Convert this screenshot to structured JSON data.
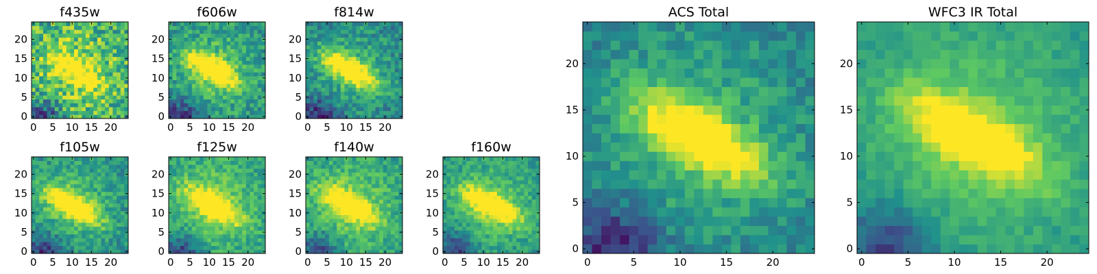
{
  "figure": {
    "background": "#ffffff",
    "colormap": "viridis",
    "colormap_stops": [
      "#440154",
      "#3b528b",
      "#21918c",
      "#5ec962",
      "#fde725"
    ]
  },
  "chart_data": [
    {
      "type": "heatmap",
      "title": "f435w",
      "grid_size": [
        25,
        25
      ],
      "xlim": [
        0,
        24
      ],
      "ylim": [
        0,
        24
      ],
      "xticks": [
        0,
        5,
        10,
        15,
        20
      ],
      "yticks": [
        0,
        5,
        10,
        15,
        20
      ],
      "peak": {
        "x": 11,
        "y": 12
      },
      "noise": 0.5,
      "bias": 0.58,
      "contrast": 0.4
    },
    {
      "type": "heatmap",
      "title": "f606w",
      "grid_size": [
        25,
        25
      ],
      "xlim": [
        0,
        24
      ],
      "ylim": [
        0,
        24
      ],
      "xticks": [
        0,
        5,
        10,
        15,
        20
      ],
      "yticks": [
        0,
        5,
        10,
        15,
        20
      ],
      "peak": {
        "x": 11,
        "y": 12
      },
      "noise": 0.32,
      "bias": 0.46,
      "contrast": 0.6
    },
    {
      "type": "heatmap",
      "title": "f814w",
      "grid_size": [
        25,
        25
      ],
      "xlim": [
        0,
        24
      ],
      "ylim": [
        0,
        24
      ],
      "xticks": [
        0,
        5,
        10,
        15,
        20
      ],
      "yticks": [
        0,
        5,
        10,
        15,
        20
      ],
      "peak": {
        "x": 11,
        "y": 12
      },
      "noise": 0.3,
      "bias": 0.4,
      "contrast": 0.65
    },
    {
      "type": "heatmap",
      "title": "f105w",
      "grid_size": [
        25,
        25
      ],
      "xlim": [
        0,
        24
      ],
      "ylim": [
        0,
        24
      ],
      "xticks": [
        0,
        5,
        10,
        15,
        20
      ],
      "yticks": [
        0,
        5,
        10,
        15,
        20
      ],
      "peak": {
        "x": 10,
        "y": 12
      },
      "noise": 0.28,
      "bias": 0.45,
      "contrast": 0.65
    },
    {
      "type": "heatmap",
      "title": "f125w",
      "grid_size": [
        25,
        25
      ],
      "xlim": [
        0,
        24
      ],
      "ylim": [
        0,
        24
      ],
      "xticks": [
        0,
        5,
        10,
        15,
        20
      ],
      "yticks": [
        0,
        5,
        10,
        15,
        20
      ],
      "peak": {
        "x": 11,
        "y": 12
      },
      "noise": 0.26,
      "bias": 0.52,
      "contrast": 0.55
    },
    {
      "type": "heatmap",
      "title": "f140w",
      "grid_size": [
        25,
        25
      ],
      "xlim": [
        0,
        24
      ],
      "ylim": [
        0,
        24
      ],
      "xticks": [
        0,
        5,
        10,
        15,
        20
      ],
      "yticks": [
        0,
        5,
        10,
        15,
        20
      ],
      "peak": {
        "x": 11,
        "y": 12
      },
      "noise": 0.26,
      "bias": 0.52,
      "contrast": 0.55
    },
    {
      "type": "heatmap",
      "title": "f160w",
      "grid_size": [
        25,
        25
      ],
      "xlim": [
        0,
        24
      ],
      "ylim": [
        0,
        24
      ],
      "xticks": [
        0,
        5,
        10,
        15,
        20
      ],
      "yticks": [
        0,
        5,
        10,
        15,
        20
      ],
      "peak": {
        "x": 12,
        "y": 12
      },
      "noise": 0.24,
      "bias": 0.48,
      "contrast": 0.62
    },
    {
      "type": "heatmap",
      "title": "ACS Total",
      "grid_size": [
        25,
        25
      ],
      "xlim": [
        0,
        24
      ],
      "ylim": [
        0,
        24
      ],
      "xticks": [
        0,
        5,
        10,
        15,
        20
      ],
      "yticks": [
        0,
        5,
        10,
        15,
        20
      ],
      "peak": {
        "x": 12,
        "y": 12
      },
      "noise": 0.22,
      "bias": 0.4,
      "contrast": 0.62
    },
    {
      "type": "heatmap",
      "title": "WFC3 IR Total",
      "grid_size": [
        25,
        25
      ],
      "xlim": [
        0,
        24
      ],
      "ylim": [
        0,
        24
      ],
      "xticks": [
        0,
        5,
        10,
        15,
        20
      ],
      "yticks": [
        0,
        5,
        10,
        15,
        20
      ],
      "peak": {
        "x": 12,
        "y": 12
      },
      "noise": 0.14,
      "bias": 0.5,
      "contrast": 0.55
    }
  ]
}
